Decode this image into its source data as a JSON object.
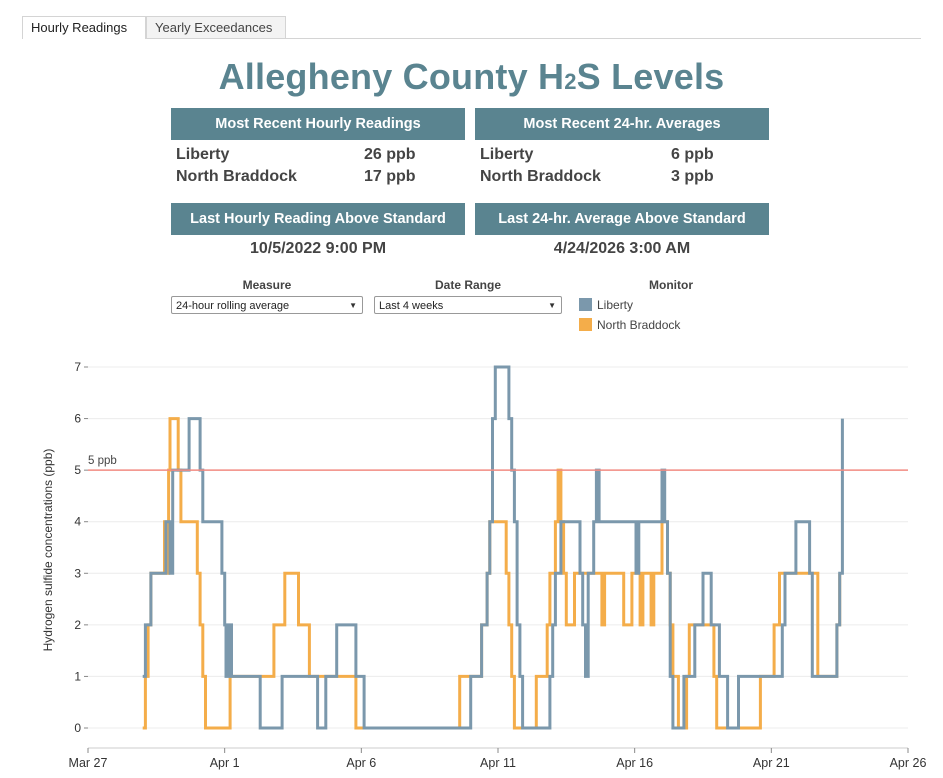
{
  "tabs": [
    {
      "label": "Hourly Readings"
    },
    {
      "label": "Yearly Exceedances"
    }
  ],
  "title": {
    "main": "Allegheny County H",
    "sub": "2",
    "tail": "S Levels"
  },
  "hourly": {
    "header": "Most Recent Hourly Readings",
    "rows": [
      {
        "name": "Liberty",
        "value": "26 ppb"
      },
      {
        "name": "North Braddock",
        "value": "17 ppb"
      }
    ]
  },
  "daily": {
    "header": "Most Recent 24-hr. Averages",
    "rows": [
      {
        "name": "Liberty",
        "value": "6 ppb"
      },
      {
        "name": "North Braddock",
        "value": "3 ppb"
      }
    ]
  },
  "last_hourly": {
    "header": "Last Hourly Reading Above Standard",
    "value": "10/5/2022 9:00 PM"
  },
  "last_daily": {
    "header": "Last 24-hr. Average Above Standard",
    "value": "4/24/2026 3:00 AM"
  },
  "filters": {
    "measure": {
      "label": "Measure",
      "value": "24-hour rolling average"
    },
    "date_range": {
      "label": "Date Range",
      "value": "Last 4 weeks"
    },
    "monitor": {
      "label": "Monitor"
    }
  },
  "colors": {
    "liberty": "#7b98ac",
    "north_braddock": "#f4ad4a",
    "standard": "#f28b82",
    "header": "#5a8490"
  },
  "chart_data": {
    "type": "line",
    "ylabel": "Hydrogen sulfide concentrations (ppb)",
    "ylim": [
      0,
      7
    ],
    "yticks": [
      0,
      1,
      2,
      3,
      4,
      5,
      6,
      7
    ],
    "x_tick_labels": [
      "Mar 27",
      "Apr 1",
      "Apr 6",
      "Apr 11",
      "Apr 16",
      "Apr 21",
      "Apr 26"
    ],
    "x_tick_days": [
      0,
      5,
      10,
      15,
      20,
      25,
      30
    ],
    "x_unit": "days since Mar 27",
    "xlim": [
      0,
      30
    ],
    "reference_line": {
      "value": 5,
      "label": "5 ppb"
    },
    "legend": "right, beside filters",
    "series": [
      {
        "name": "Liberty",
        "points": [
          [
            2,
            1
          ],
          [
            2.1,
            2
          ],
          [
            2.3,
            3
          ],
          [
            2.8,
            3
          ],
          [
            2.85,
            4
          ],
          [
            3.0,
            3
          ],
          [
            3.1,
            5
          ],
          [
            3.6,
            5
          ],
          [
            3.7,
            6
          ],
          [
            4.0,
            6
          ],
          [
            4.1,
            5
          ],
          [
            4.2,
            4
          ],
          [
            4.8,
            4
          ],
          [
            4.9,
            3
          ],
          [
            5.0,
            2
          ],
          [
            5.05,
            1
          ],
          [
            5.15,
            2
          ],
          [
            5.25,
            1
          ],
          [
            5.5,
            1
          ],
          [
            6.2,
            1
          ],
          [
            6.3,
            0
          ],
          [
            7.0,
            0
          ],
          [
            7.1,
            1
          ],
          [
            8.3,
            1
          ],
          [
            8.4,
            0
          ],
          [
            8.6,
            0
          ],
          [
            8.7,
            1
          ],
          [
            9.0,
            1
          ],
          [
            9.1,
            2
          ],
          [
            9.7,
            2
          ],
          [
            9.8,
            1
          ],
          [
            10.0,
            1
          ],
          [
            10.1,
            0
          ],
          [
            13.9,
            0
          ],
          [
            14.0,
            1
          ],
          [
            14.3,
            1
          ],
          [
            14.4,
            2
          ],
          [
            14.6,
            3
          ],
          [
            14.7,
            4
          ],
          [
            14.8,
            6
          ],
          [
            14.9,
            7
          ],
          [
            15.3,
            7
          ],
          [
            15.4,
            6
          ],
          [
            15.5,
            5
          ],
          [
            15.6,
            4
          ],
          [
            15.7,
            2
          ],
          [
            15.8,
            1
          ],
          [
            15.9,
            0
          ],
          [
            16.8,
            0
          ],
          [
            16.9,
            1
          ],
          [
            17.0,
            2
          ],
          [
            17.1,
            3
          ],
          [
            17.3,
            4
          ],
          [
            17.9,
            4
          ],
          [
            18.0,
            3
          ],
          [
            18.1,
            2
          ],
          [
            18.2,
            1
          ],
          [
            18.3,
            3
          ],
          [
            18.5,
            4
          ],
          [
            18.6,
            5
          ],
          [
            18.7,
            4
          ],
          [
            20.0,
            4
          ],
          [
            20.05,
            3
          ],
          [
            20.15,
            4
          ],
          [
            20.9,
            4
          ],
          [
            21.0,
            5
          ],
          [
            21.1,
            4
          ],
          [
            21.2,
            3
          ],
          [
            21.3,
            1
          ],
          [
            21.4,
            0
          ],
          [
            21.7,
            0
          ],
          [
            21.8,
            1
          ],
          [
            22.1,
            1
          ],
          [
            22.2,
            2
          ],
          [
            22.4,
            2
          ],
          [
            22.5,
            3
          ],
          [
            22.7,
            3
          ],
          [
            22.8,
            2
          ],
          [
            23.0,
            2
          ],
          [
            23.1,
            1
          ],
          [
            23.3,
            1
          ],
          [
            23.4,
            0
          ],
          [
            23.7,
            0
          ],
          [
            23.8,
            1
          ],
          [
            25.3,
            1
          ],
          [
            25.4,
            2
          ],
          [
            25.5,
            3
          ],
          [
            25.8,
            3
          ],
          [
            25.9,
            4
          ],
          [
            26.3,
            4
          ],
          [
            26.4,
            3
          ],
          [
            26.5,
            1
          ],
          [
            27.3,
            1
          ],
          [
            27.4,
            2
          ],
          [
            27.5,
            3
          ],
          [
            27.6,
            6
          ]
        ]
      },
      {
        "name": "North Braddock",
        "points": [
          [
            2,
            0
          ],
          [
            2.1,
            1
          ],
          [
            2.2,
            2
          ],
          [
            2.3,
            3
          ],
          [
            2.7,
            3
          ],
          [
            2.8,
            4
          ],
          [
            2.85,
            3
          ],
          [
            2.95,
            5
          ],
          [
            3.0,
            6
          ],
          [
            3.2,
            6
          ],
          [
            3.3,
            5
          ],
          [
            3.4,
            4
          ],
          [
            3.9,
            4
          ],
          [
            4.0,
            3
          ],
          [
            4.1,
            2
          ],
          [
            4.2,
            1
          ],
          [
            4.3,
            0
          ],
          [
            5.1,
            0
          ],
          [
            5.2,
            1
          ],
          [
            6.7,
            1
          ],
          [
            6.8,
            2
          ],
          [
            7.1,
            2
          ],
          [
            7.2,
            3
          ],
          [
            7.6,
            3
          ],
          [
            7.7,
            2
          ],
          [
            8.0,
            2
          ],
          [
            8.1,
            1
          ],
          [
            9.7,
            1
          ],
          [
            9.8,
            0
          ],
          [
            13.5,
            0
          ],
          [
            13.6,
            1
          ],
          [
            14.3,
            1
          ],
          [
            14.4,
            2
          ],
          [
            14.6,
            3
          ],
          [
            14.7,
            4
          ],
          [
            15.2,
            4
          ],
          [
            15.3,
            3
          ],
          [
            15.4,
            2
          ],
          [
            15.5,
            1
          ],
          [
            15.6,
            0
          ],
          [
            16.3,
            0
          ],
          [
            16.4,
            1
          ],
          [
            16.7,
            1
          ],
          [
            16.8,
            2
          ],
          [
            16.9,
            3
          ],
          [
            17.1,
            4
          ],
          [
            17.2,
            5
          ],
          [
            17.3,
            4
          ],
          [
            17.4,
            3
          ],
          [
            17.5,
            2
          ],
          [
            17.7,
            2
          ],
          [
            17.8,
            3
          ],
          [
            18.7,
            3
          ],
          [
            18.8,
            2
          ],
          [
            18.9,
            3
          ],
          [
            19.5,
            3
          ],
          [
            19.6,
            2
          ],
          [
            19.8,
            2
          ],
          [
            19.9,
            3
          ],
          [
            20.1,
            3
          ],
          [
            20.2,
            2
          ],
          [
            20.3,
            3
          ],
          [
            20.5,
            3
          ],
          [
            20.6,
            2
          ],
          [
            20.7,
            3
          ],
          [
            20.9,
            3
          ],
          [
            21.0,
            4
          ],
          [
            21.2,
            3
          ],
          [
            21.3,
            2
          ],
          [
            21.4,
            1
          ],
          [
            21.6,
            0
          ],
          [
            21.8,
            0
          ],
          [
            21.9,
            1
          ],
          [
            22.0,
            2
          ],
          [
            22.8,
            2
          ],
          [
            22.9,
            1
          ],
          [
            23.0,
            0
          ],
          [
            24.5,
            0
          ],
          [
            24.6,
            1
          ],
          [
            25.0,
            1
          ],
          [
            25.1,
            2
          ],
          [
            25.3,
            3
          ],
          [
            26.6,
            3
          ],
          [
            26.7,
            1
          ],
          [
            27.3,
            1
          ],
          [
            27.4,
            2
          ],
          [
            27.5,
            3
          ]
        ]
      }
    ]
  }
}
